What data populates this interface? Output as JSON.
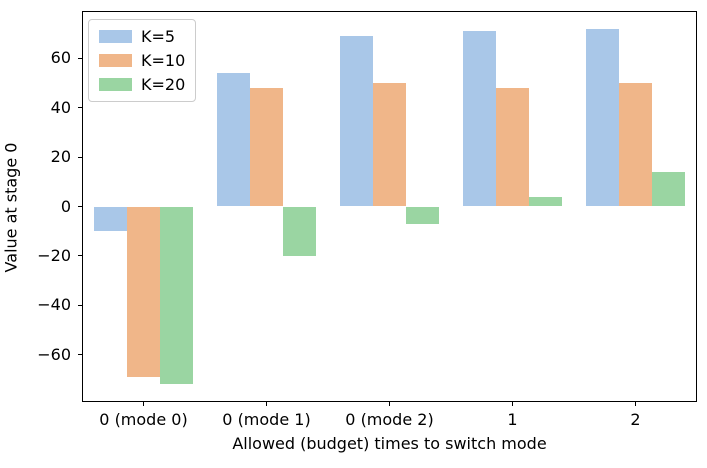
{
  "figure": {
    "background": "#ffffff",
    "text_color": "#000000"
  },
  "chart_data": {
    "type": "bar",
    "title": "",
    "xlabel": "Allowed (budget) times to switch mode",
    "ylabel": "Value at stage 0",
    "categories": [
      "0 (mode 0)",
      "0 (mode 1)",
      "0 (mode 2)",
      "1",
      "2"
    ],
    "series": [
      {
        "name": "K=5",
        "color": "#a9c7e8",
        "values": [
          -10,
          54,
          69,
          71,
          72
        ]
      },
      {
        "name": "K=10",
        "color": "#f0b689",
        "values": [
          -69,
          48,
          50,
          48,
          50
        ]
      },
      {
        "name": "K=20",
        "color": "#9ad5a2",
        "values": [
          -72,
          -20,
          -7,
          4,
          14
        ]
      }
    ],
    "ylim": [
      -79.2,
      79.2
    ],
    "yticks": [
      -60,
      -40,
      -20,
      0,
      20,
      40,
      60
    ],
    "grid": false,
    "bar_group_width_fraction": 0.8,
    "legend": {
      "position": "upper-left",
      "entries": [
        "K=5",
        "K=10",
        "K=20"
      ]
    }
  }
}
